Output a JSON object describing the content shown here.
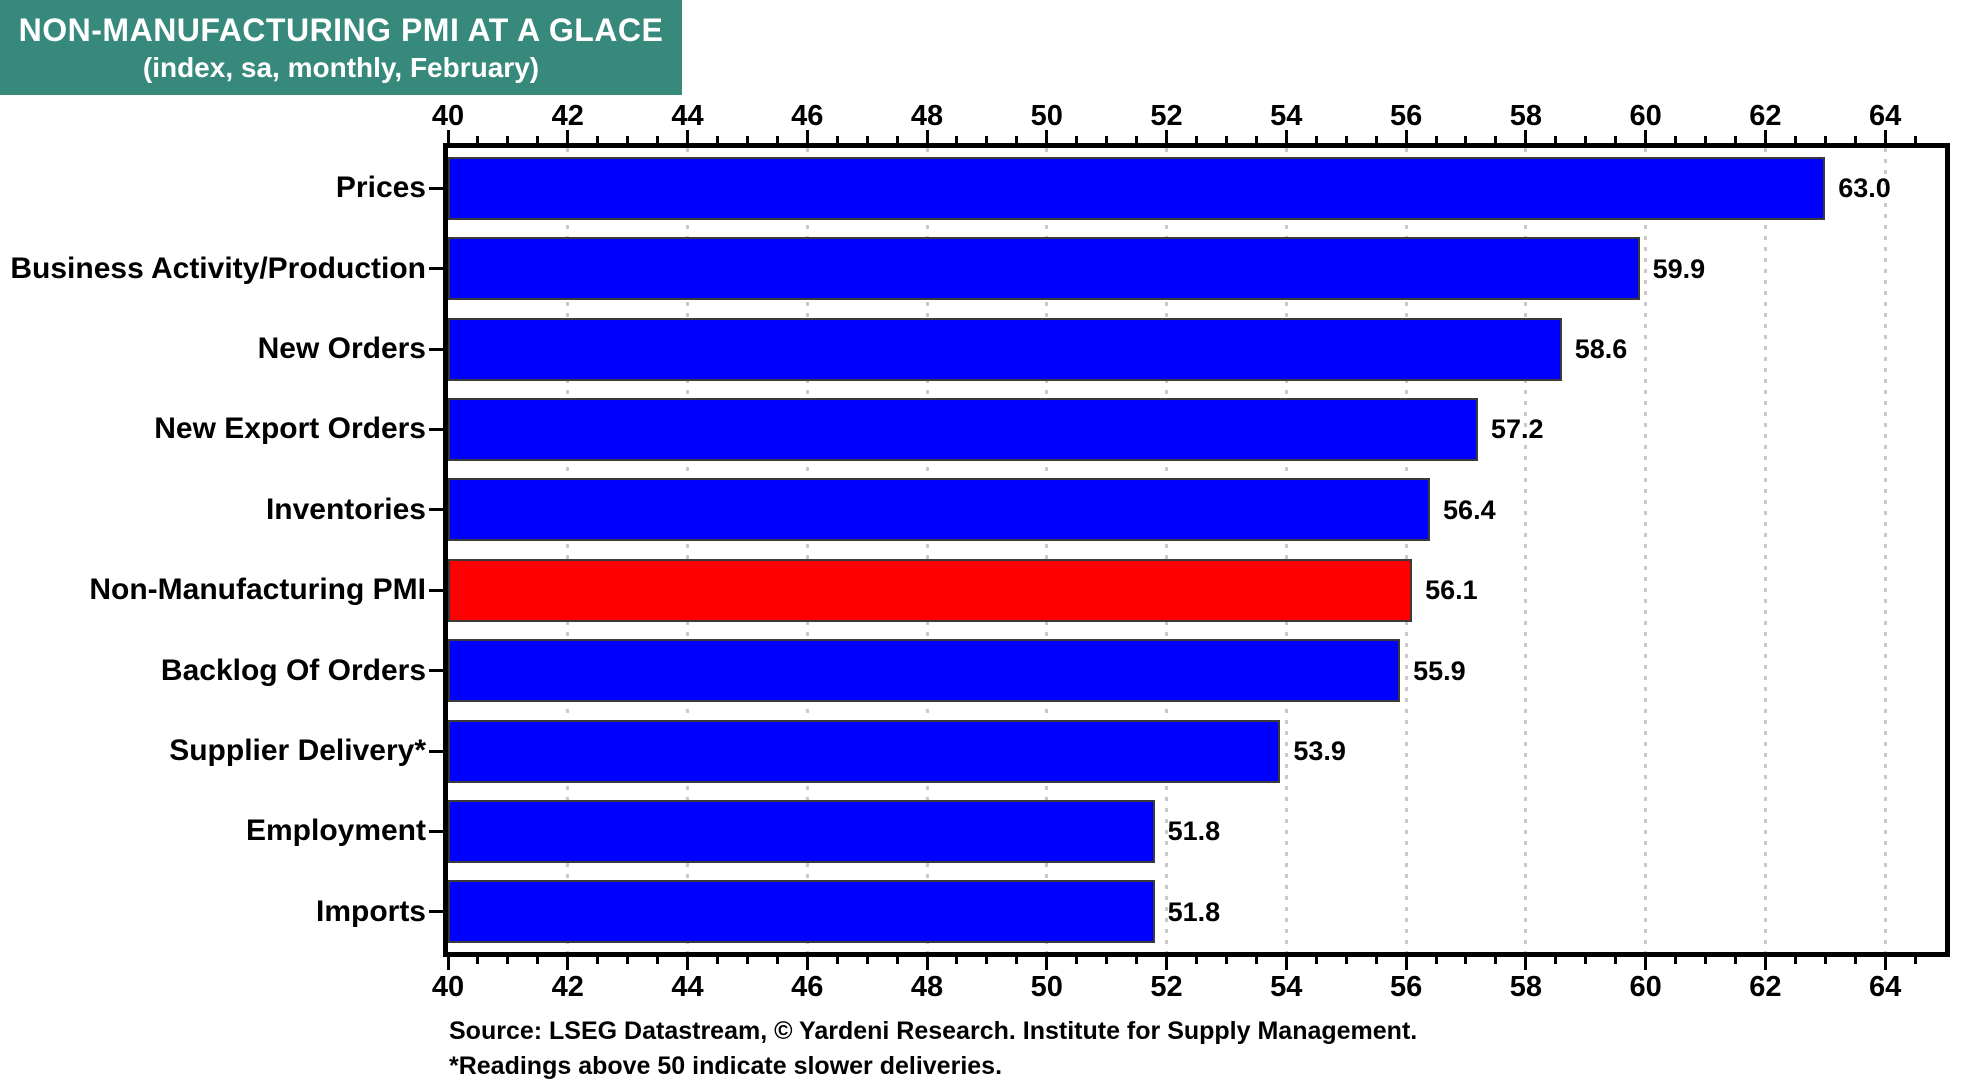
{
  "title": {
    "line1": "NON-MANUFACTURING PMI AT A GLACE",
    "line2": "(index, sa, monthly, February)"
  },
  "colors": {
    "title_bg": "#37897C",
    "title_text": "#FFFFFF",
    "bar_blue": "#0000FF",
    "bar_red": "#FF0000",
    "bar_border": "#3A3A3A",
    "gridline": "#C9C9C9",
    "frame": "#000000"
  },
  "footer": {
    "source_line": "Source: LSEG Datastream, © Yardeni Research. Institute for Supply Management.",
    "note_line": "*Readings above 50 indicate slower deliveries."
  },
  "chart_data": {
    "type": "bar",
    "orientation": "horizontal",
    "title": "NON-MANUFACTURING PMI AT A GLACE (index, sa, monthly, February)",
    "categories": [
      "Prices",
      "Business Activity/Production",
      "New Orders",
      "New Export Orders",
      "Inventories",
      "Non-Manufacturing PMI",
      "Backlog Of Orders",
      "Supplier Delivery*",
      "Employment",
      "Imports"
    ],
    "values": [
      63.0,
      59.9,
      58.6,
      57.2,
      56.4,
      56.1,
      55.9,
      53.9,
      51.8,
      51.8
    ],
    "value_labels": [
      "63.0",
      "59.9",
      "58.6",
      "57.2",
      "56.4",
      "56.1",
      "55.9",
      "53.9",
      "51.8",
      "51.8"
    ],
    "highlight_index": 5,
    "highlight_category": "Non-Manufacturing PMI",
    "axis": {
      "min": 40,
      "max": 65,
      "label_step": 2,
      "minor_step": 0.5,
      "tick_labels": [
        "40",
        "42",
        "44",
        "46",
        "48",
        "50",
        "52",
        "54",
        "56",
        "58",
        "60",
        "62",
        "64"
      ],
      "position": "top-and-bottom"
    },
    "grid": "vertical-dotted-every-2",
    "legend": "none",
    "xlabel": "",
    "ylabel": ""
  }
}
